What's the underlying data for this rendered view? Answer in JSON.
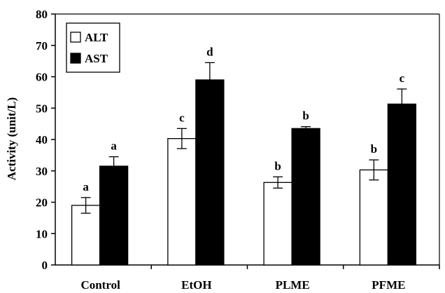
{
  "chart_data": {
    "type": "bar",
    "title": "",
    "xlabel": "",
    "ylabel": "Activity (unit/L)",
    "ylim": [
      0,
      80
    ],
    "yticks": [
      0,
      10,
      20,
      30,
      40,
      50,
      60,
      70,
      80
    ],
    "grid": false,
    "legend_position": "top-left",
    "categories": [
      "Control",
      "EtOH",
      "PLME",
      "PFME"
    ],
    "series": [
      {
        "name": "ALT",
        "color": "#ffffff",
        "values": [
          19,
          40.3,
          26.3,
          30.3
        ],
        "errors": [
          2.5,
          3.2,
          1.8,
          3.2
        ],
        "labels": [
          "a",
          "c",
          "b",
          "b"
        ]
      },
      {
        "name": "AST",
        "color": "#000000",
        "values": [
          31.5,
          59,
          43.5,
          51.3
        ],
        "errors": [
          3,
          5.5,
          0.6,
          4.8
        ],
        "labels": [
          "a",
          "d",
          "b",
          "c"
        ]
      }
    ]
  }
}
